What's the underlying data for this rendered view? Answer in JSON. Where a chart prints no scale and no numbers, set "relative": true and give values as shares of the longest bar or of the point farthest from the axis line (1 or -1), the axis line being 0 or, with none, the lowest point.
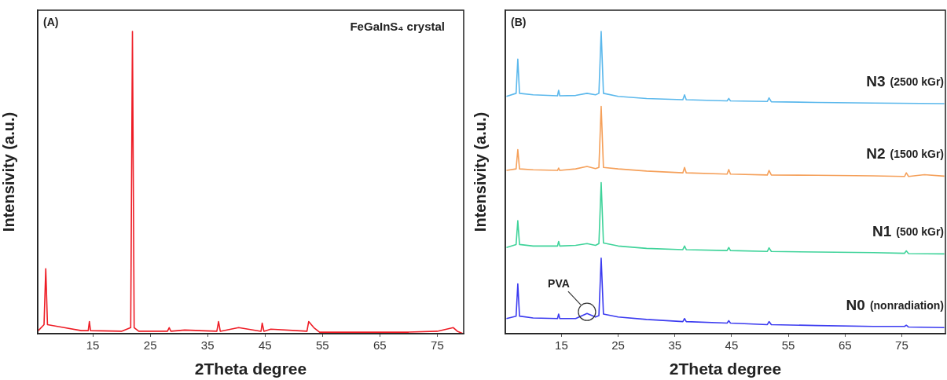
{
  "chart_data": [
    {
      "type": "line",
      "xlabel": "2Theta degree",
      "ylabel": "Intensivity (a.u.)",
      "relative": true,
      "marker": "none",
      "line_style": "solid",
      "xlim": [
        5.4,
        79.6
      ],
      "xticks": [
        15,
        25,
        35,
        45,
        55,
        65,
        75
      ],
      "annotations": [
        "(A)",
        "FeGaInS₄ crystal"
      ],
      "series": [
        {
          "color": "#ee1c25",
          "x": [
            5.5,
            6.5,
            6.8,
            7.1,
            10,
            13,
            14.2,
            14.4,
            14.6,
            20,
            21.6,
            21.9,
            22.2,
            23,
            28,
            28.3,
            28.6,
            31,
            36.6,
            36.9,
            37.2,
            40.4,
            44.3,
            44.5,
            44.8,
            46,
            52.3,
            52.6,
            53.5,
            54.5,
            60,
            70,
            75,
            77.8,
            78.5,
            79.5
          ],
          "values": [
            0.01,
            0.03,
            0.215,
            0.03,
            0.02,
            0.01,
            0.01,
            0.04,
            0.01,
            0.008,
            0.02,
            1,
            0.02,
            0.008,
            0.008,
            0.02,
            0.008,
            0.012,
            0.008,
            0.04,
            0.008,
            0.02,
            0.008,
            0.035,
            0.008,
            0.015,
            0.008,
            0.04,
            0.02,
            0.005,
            0.005,
            0.005,
            0.008,
            0.02,
            0.008,
            0
          ]
        }
      ]
    },
    {
      "type": "line",
      "xlabel": "2Theta degree",
      "ylabel": "Intensivity (a.u.)",
      "relative": true,
      "marker": "none",
      "line_style": "solid",
      "xlim": [
        5.1,
        82.7
      ],
      "xticks": [
        15,
        25,
        35,
        45,
        55,
        65,
        75
      ],
      "annotations": [
        "(B)",
        {
          "text": "PVA",
          "x": 19.5,
          "y": 0.067
        }
      ],
      "series": [
        {
          "name": "N3 (2500 kGr)",
          "color": "#5bb8ec",
          "x": [
            5.3,
            7.0,
            7.3,
            7.6,
            10,
            14.3,
            14.5,
            14.7,
            17.5,
            19.5,
            21,
            21.6,
            22,
            22.4,
            25,
            30,
            36.4,
            36.7,
            37,
            44.2,
            44.5,
            44.8,
            51.3,
            51.6,
            52,
            60,
            70,
            82.5
          ],
          "values": [
            0.785,
            0.795,
            0.908,
            0.795,
            0.79,
            0.787,
            0.805,
            0.787,
            0.788,
            0.795,
            0.79,
            0.795,
            1,
            0.795,
            0.785,
            0.778,
            0.774,
            0.79,
            0.774,
            0.77,
            0.778,
            0.77,
            0.768,
            0.78,
            0.767,
            0.765,
            0.763,
            0.761
          ]
        },
        {
          "name": "N2 (1500 kGr)",
          "color": "#f5a05a",
          "x": [
            5.3,
            7.0,
            7.3,
            7.6,
            10,
            14.3,
            14.5,
            14.7,
            17.5,
            19.5,
            21,
            21.6,
            22,
            22.4,
            25,
            30,
            36.4,
            36.7,
            37,
            44.2,
            44.5,
            44.8,
            51.3,
            51.6,
            52,
            60,
            70,
            75.5,
            75.8,
            76.2,
            79,
            82.5
          ],
          "values": [
            0.54,
            0.545,
            0.609,
            0.545,
            0.542,
            0.54,
            0.548,
            0.54,
            0.545,
            0.553,
            0.546,
            0.55,
            0.752,
            0.55,
            0.545,
            0.538,
            0.532,
            0.55,
            0.532,
            0.528,
            0.543,
            0.528,
            0.525,
            0.54,
            0.525,
            0.524,
            0.522,
            0.52,
            0.532,
            0.52,
            0.526,
            0.521
          ]
        },
        {
          "name": "N1 (500 kGr)",
          "color": "#3fd39a",
          "x": [
            5.3,
            7.0,
            7.3,
            7.6,
            10,
            14.3,
            14.5,
            14.7,
            17.5,
            19.5,
            21,
            21.6,
            22,
            22.4,
            25,
            30,
            36.4,
            36.7,
            37,
            44.2,
            44.5,
            44.8,
            51.3,
            51.6,
            52,
            60,
            70,
            75.5,
            75.8,
            76.2,
            82.5
          ],
          "values": [
            0.285,
            0.295,
            0.374,
            0.295,
            0.29,
            0.29,
            0.305,
            0.29,
            0.292,
            0.298,
            0.292,
            0.298,
            0.5,
            0.3,
            0.29,
            0.282,
            0.278,
            0.29,
            0.278,
            0.275,
            0.285,
            0.275,
            0.272,
            0.284,
            0.272,
            0.27,
            0.268,
            0.266,
            0.274,
            0.265,
            0.264
          ]
        },
        {
          "name": "N0 (nonradiation)",
          "color": "#3b3bf0",
          "x": [
            5.3,
            7.0,
            7.3,
            7.6,
            10,
            14.3,
            14.5,
            14.7,
            17.5,
            19.5,
            21,
            21.6,
            22,
            22.4,
            25,
            30,
            36.4,
            36.7,
            37,
            44.2,
            44.5,
            44.8,
            51.3,
            51.6,
            52,
            60,
            70,
            75.5,
            75.8,
            76.2,
            82.5
          ],
          "values": [
            0.05,
            0.058,
            0.165,
            0.058,
            0.052,
            0.05,
            0.065,
            0.05,
            0.05,
            0.067,
            0.055,
            0.06,
            0.25,
            0.065,
            0.055,
            0.047,
            0.04,
            0.05,
            0.04,
            0.035,
            0.043,
            0.035,
            0.03,
            0.04,
            0.03,
            0.027,
            0.024,
            0.024,
            0.028,
            0.022,
            0.02
          ]
        }
      ]
    }
  ]
}
